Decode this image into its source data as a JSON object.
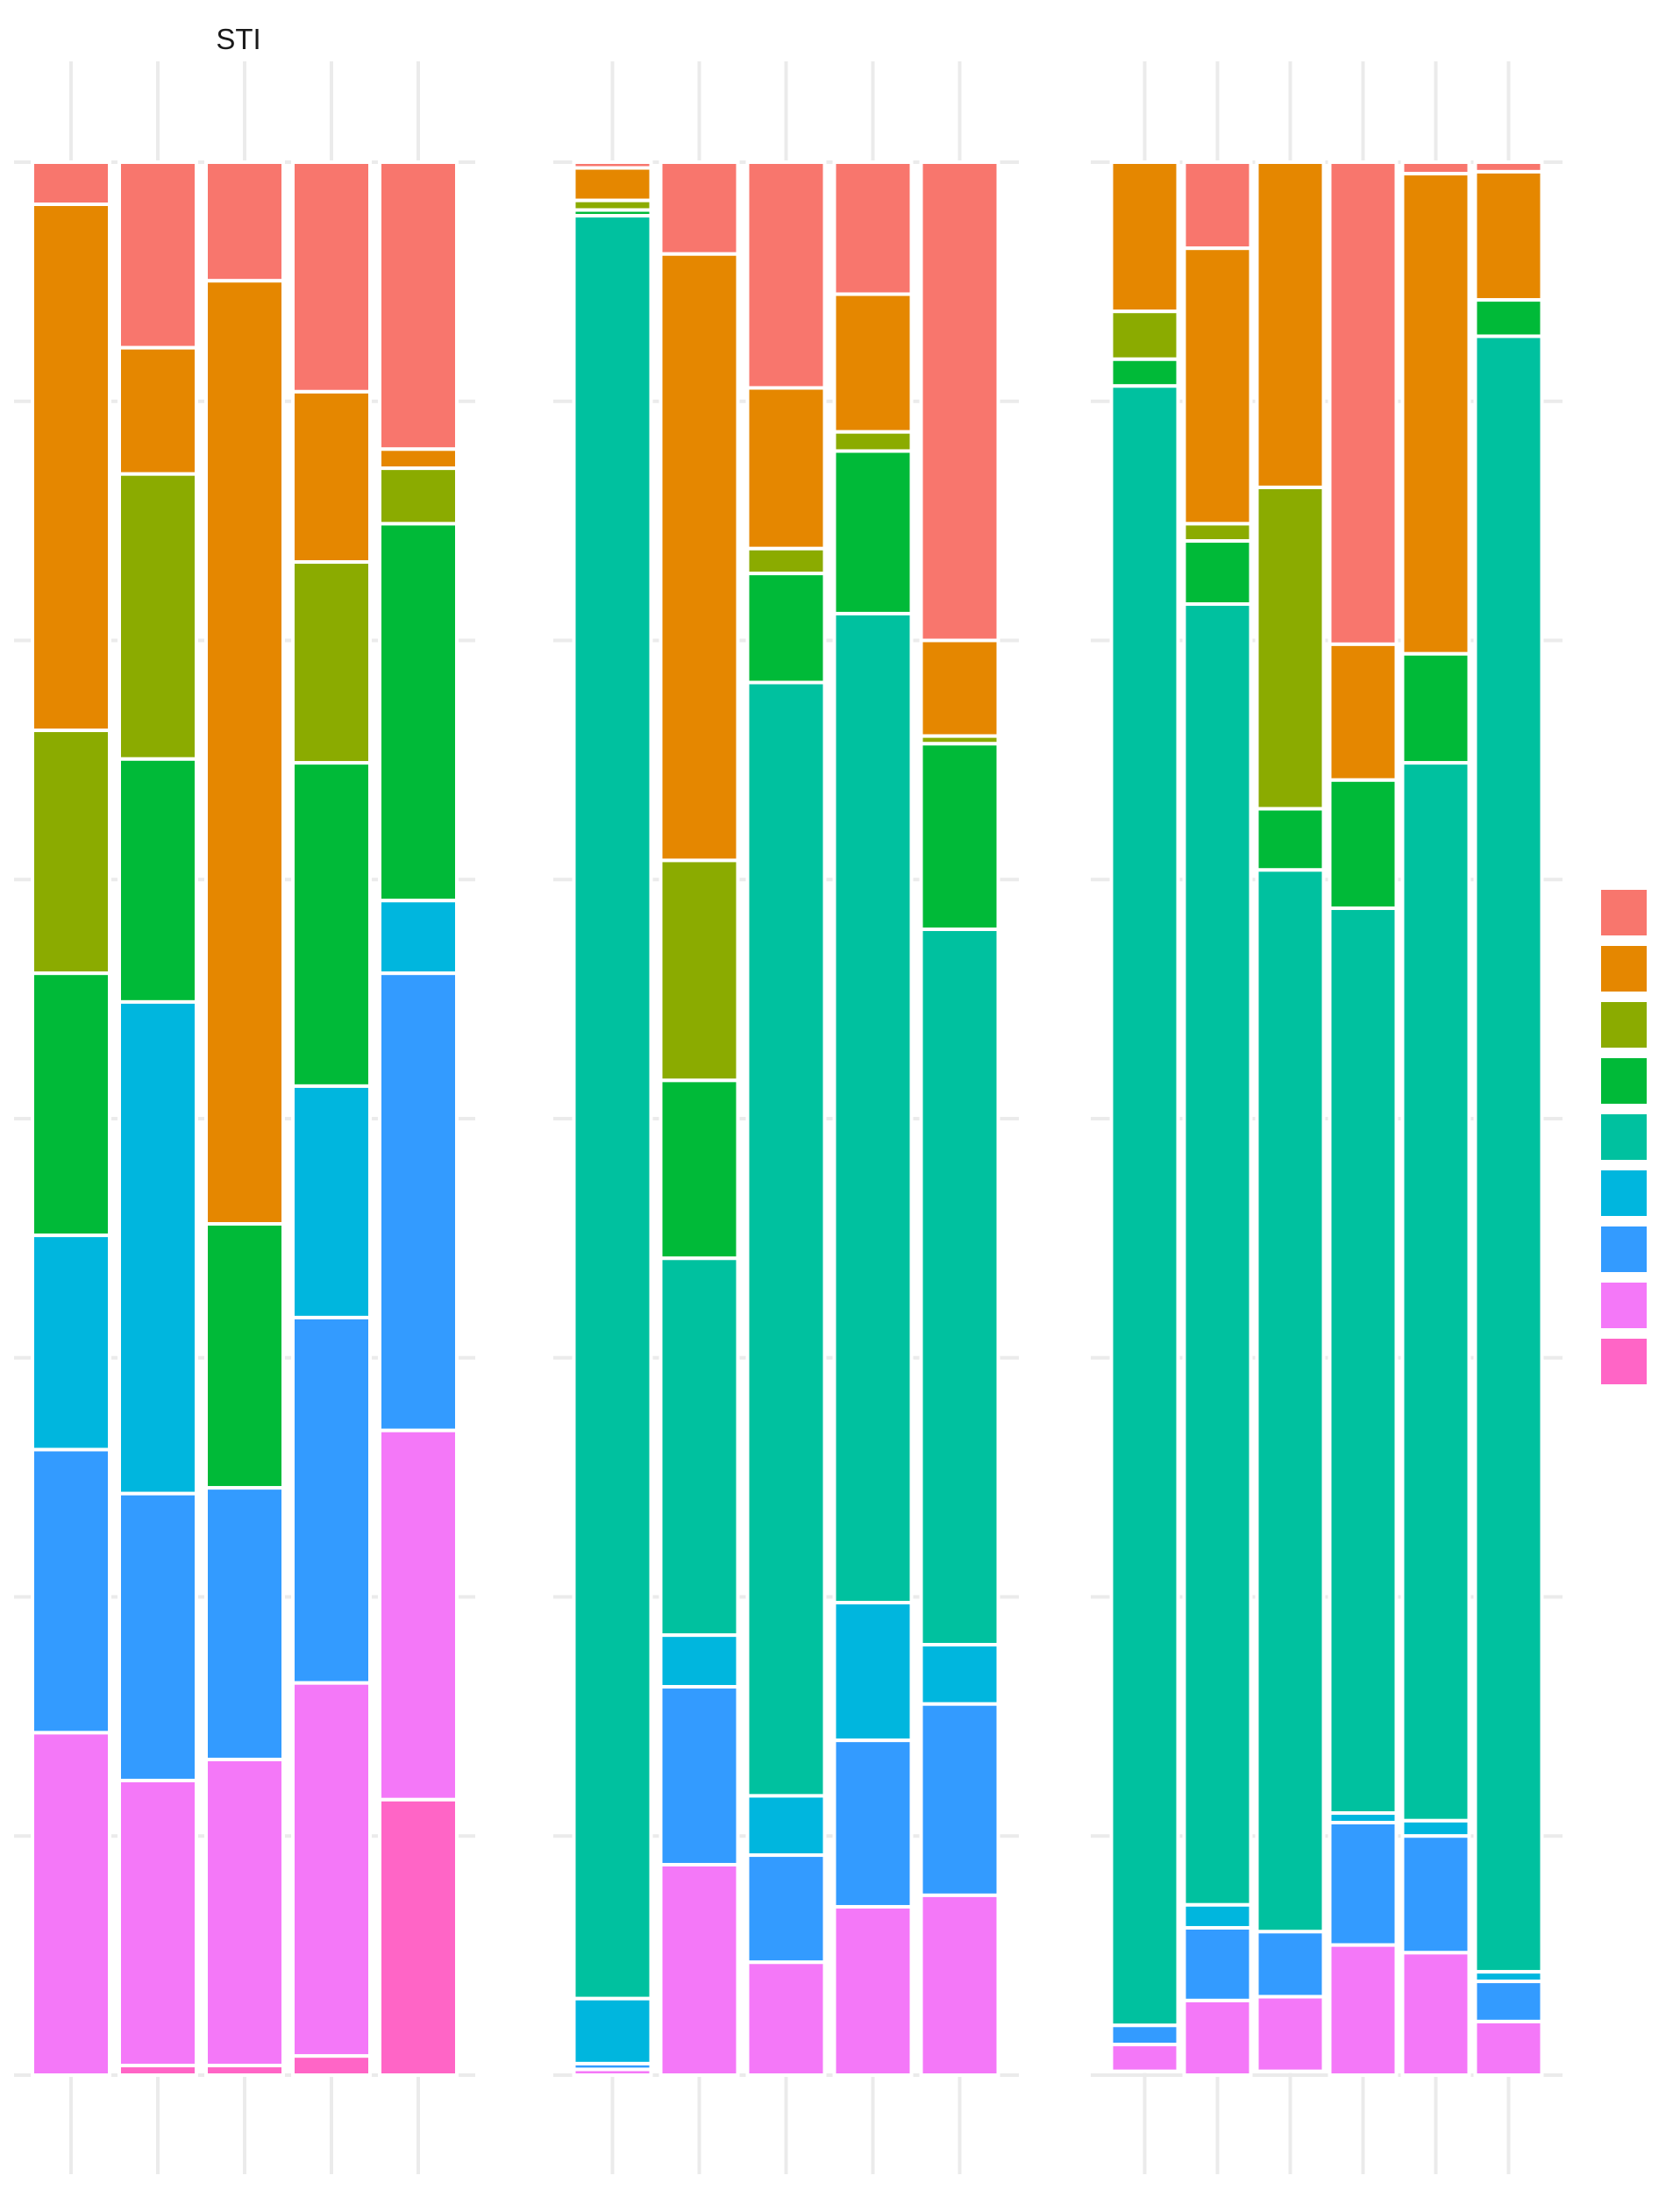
{
  "chart_data": {
    "type": "bar",
    "stacked": true,
    "normalized": true,
    "title": "STI",
    "xlabel": "",
    "ylabel": "",
    "ylim": [
      0,
      1
    ],
    "grid": true,
    "legend_position": "right",
    "legend_labels_shown": false,
    "stack_order": [
      "c1",
      "c2",
      "c3",
      "c4",
      "c5",
      "c6",
      "c7",
      "c8",
      "c9"
    ],
    "colors": {
      "c1": "#F8766D",
      "c2": "#E58700",
      "c3": "#8BAB00",
      "c4": "#00BA38",
      "c5": "#00C19F",
      "c6": "#00B6DE",
      "c7": "#339BFF",
      "c8": "#F478F8",
      "c9": "#FF65C6"
    },
    "panels": [
      {
        "bars": [
          {
            "c1": 0.022,
            "c2": 0.275,
            "c3": 0.127,
            "c4": 0.137,
            "c5": 0.0,
            "c6": 0.112,
            "c7": 0.148,
            "c8": 0.179,
            "c9": 0.0
          },
          {
            "c1": 0.097,
            "c2": 0.066,
            "c3": 0.149,
            "c4": 0.127,
            "c5": 0.0,
            "c6": 0.257,
            "c7": 0.15,
            "c8": 0.149,
            "c9": 0.005
          },
          {
            "c1": 0.062,
            "c2": 0.493,
            "c3": 0.0,
            "c4": 0.138,
            "c5": 0.0,
            "c6": 0.0,
            "c7": 0.142,
            "c8": 0.16,
            "c9": 0.005
          },
          {
            "c1": 0.12,
            "c2": 0.089,
            "c3": 0.105,
            "c4": 0.169,
            "c5": 0.0,
            "c6": 0.121,
            "c7": 0.191,
            "c8": 0.195,
            "c9": 0.01
          },
          {
            "c1": 0.15,
            "c2": 0.01,
            "c3": 0.029,
            "c4": 0.197,
            "c5": 0.0,
            "c6": 0.038,
            "c7": 0.239,
            "c8": 0.193,
            "c9": 0.144
          }
        ]
      },
      {
        "bars": [
          {
            "c1": 0.003,
            "c2": 0.017,
            "c3": 0.005,
            "c4": 0.003,
            "c5": 0.932,
            "c6": 0.034,
            "c7": 0.003,
            "c8": 0.003,
            "c9": 0.0
          },
          {
            "c1": 0.048,
            "c2": 0.317,
            "c3": 0.115,
            "c4": 0.093,
            "c5": 0.197,
            "c6": 0.027,
            "c7": 0.093,
            "c8": 0.11,
            "c9": 0.0
          },
          {
            "c1": 0.118,
            "c2": 0.084,
            "c3": 0.013,
            "c4": 0.057,
            "c5": 0.582,
            "c6": 0.031,
            "c7": 0.056,
            "c8": 0.059,
            "c9": 0.0
          },
          {
            "c1": 0.069,
            "c2": 0.072,
            "c3": 0.01,
            "c4": 0.085,
            "c5": 0.517,
            "c6": 0.072,
            "c7": 0.087,
            "c8": 0.088,
            "c9": 0.0
          },
          {
            "c1": 0.25,
            "c2": 0.05,
            "c3": 0.004,
            "c4": 0.097,
            "c5": 0.374,
            "c6": 0.031,
            "c7": 0.1,
            "c8": 0.094,
            "c9": 0.0
          }
        ]
      },
      {
        "bars": [
          {
            "c1": 0.0,
            "c2": 0.078,
            "c3": 0.025,
            "c4": 0.014,
            "c5": 0.857,
            "c6": 0.0,
            "c7": 0.01,
            "c8": 0.014,
            "c9": 0.0
          },
          {
            "c1": 0.045,
            "c2": 0.144,
            "c3": 0.009,
            "c4": 0.033,
            "c5": 0.68,
            "c6": 0.012,
            "c7": 0.038,
            "c8": 0.039,
            "c9": 0.0
          },
          {
            "c1": 0.0,
            "c2": 0.17,
            "c3": 0.168,
            "c4": 0.032,
            "c5": 0.555,
            "c6": 0.0,
            "c7": 0.034,
            "c8": 0.039,
            "c9": 0.0
          },
          {
            "c1": 0.252,
            "c2": 0.071,
            "c3": 0.0,
            "c4": 0.067,
            "c5": 0.473,
            "c6": 0.005,
            "c7": 0.064,
            "c8": 0.068,
            "c9": 0.0
          },
          {
            "c1": 0.006,
            "c2": 0.251,
            "c3": 0.0,
            "c4": 0.057,
            "c5": 0.553,
            "c6": 0.008,
            "c7": 0.061,
            "c8": 0.064,
            "c9": 0.0
          },
          {
            "c1": 0.005,
            "c2": 0.067,
            "c3": 0.0,
            "c4": 0.019,
            "c5": 0.855,
            "c6": 0.005,
            "c7": 0.021,
            "c8": 0.028,
            "c9": 0.0
          }
        ]
      }
    ]
  }
}
